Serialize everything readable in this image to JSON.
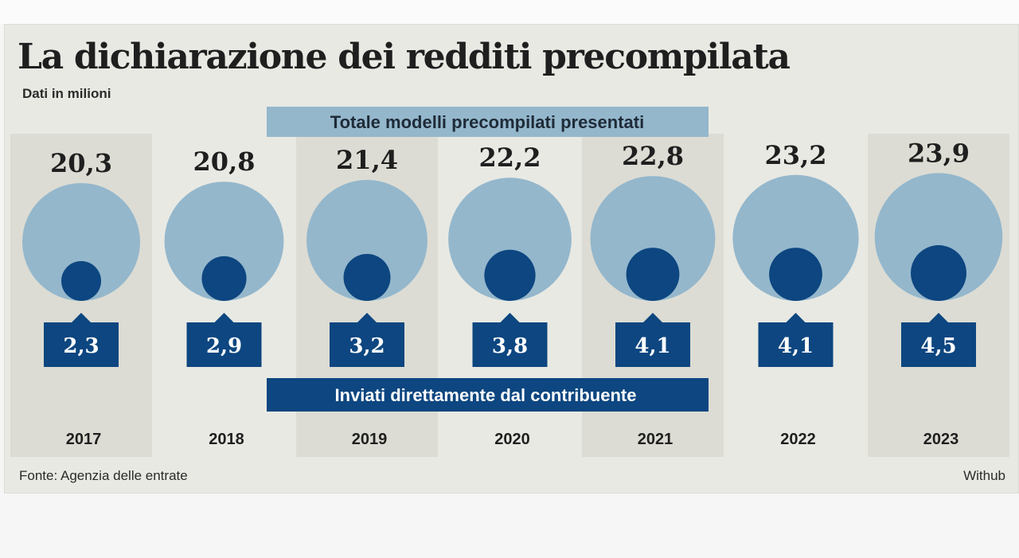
{
  "header": {
    "title": "La dichiarazione dei redditi precompilata",
    "subtitle": "Dati in milioni"
  },
  "footer": {
    "source": "Fonte: Agenzia delle entrate",
    "credit": "Withub"
  },
  "colors": {
    "light_circle": "#94b7cc",
    "dark_circle": "#0d4680",
    "top_band": "#94b7cc",
    "bottom_band": "#0d4680",
    "stripe": "#dcdcd4",
    "background": "#e8e9e3"
  },
  "chart_data": {
    "type": "bubble",
    "title": "La dichiarazione dei redditi precompilata",
    "subtitle": "Dati in milioni",
    "categories": [
      "2017",
      "2018",
      "2019",
      "2020",
      "2021",
      "2022",
      "2023"
    ],
    "series": [
      {
        "name": "Totale modelli precompilati presentati",
        "values": [
          20.3,
          20.8,
          21.4,
          22.2,
          22.8,
          23.2,
          23.9
        ],
        "labels": [
          "20,3",
          "20,8",
          "21,4",
          "22,2",
          "22,8",
          "23,2",
          "23,9"
        ]
      },
      {
        "name": "Inviati direttamente dal contribuente",
        "values": [
          2.3,
          2.9,
          3.2,
          3.8,
          4.1,
          4.1,
          4.5
        ],
        "labels": [
          "2,3",
          "2,9",
          "3,2",
          "3,8",
          "4,1",
          "4,1",
          "4,5"
        ]
      }
    ]
  }
}
